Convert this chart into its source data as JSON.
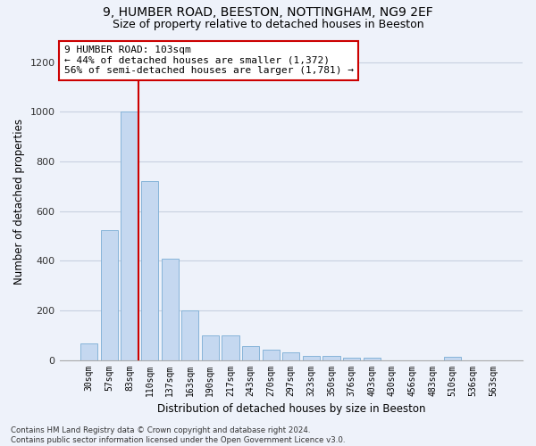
{
  "title_line1": "9, HUMBER ROAD, BEESTON, NOTTINGHAM, NG9 2EF",
  "title_line2": "Size of property relative to detached houses in Beeston",
  "xlabel": "Distribution of detached houses by size in Beeston",
  "ylabel": "Number of detached properties",
  "categories": [
    "30sqm",
    "57sqm",
    "83sqm",
    "110sqm",
    "137sqm",
    "163sqm",
    "190sqm",
    "217sqm",
    "243sqm",
    "270sqm",
    "297sqm",
    "323sqm",
    "350sqm",
    "376sqm",
    "403sqm",
    "430sqm",
    "456sqm",
    "483sqm",
    "510sqm",
    "536sqm",
    "563sqm"
  ],
  "values": [
    65,
    525,
    1000,
    720,
    410,
    200,
    100,
    100,
    55,
    40,
    32,
    15,
    15,
    10,
    10,
    0,
    0,
    0,
    12,
    0,
    0
  ],
  "bar_color": "#c5d8f0",
  "bar_edgecolor": "#7aadd4",
  "grid_color": "#c8d0e0",
  "background_color": "#eef2fa",
  "vline_index": 2,
  "vline_color": "#cc0000",
  "annotation_text": "9 HUMBER ROAD: 103sqm\n← 44% of detached houses are smaller (1,372)\n56% of semi-detached houses are larger (1,781) →",
  "annotation_box_facecolor": "white",
  "annotation_box_edgecolor": "#cc0000",
  "ylim": [
    0,
    1280
  ],
  "yticks": [
    0,
    200,
    400,
    600,
    800,
    1000,
    1200
  ],
  "title1_fontsize": 10,
  "title2_fontsize": 9,
  "footer_line1": "Contains HM Land Registry data © Crown copyright and database right 2024.",
  "footer_line2": "Contains public sector information licensed under the Open Government Licence v3.0."
}
